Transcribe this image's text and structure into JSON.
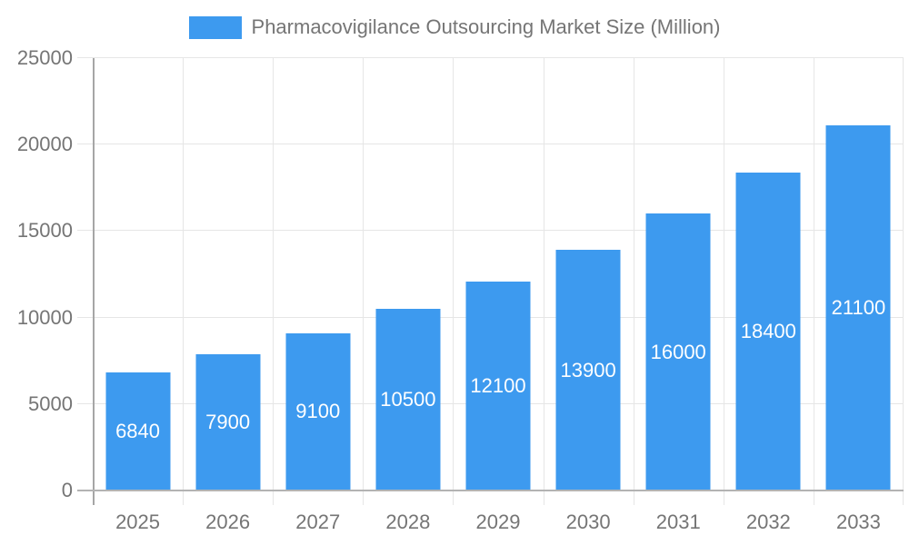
{
  "chart_data": {
    "type": "bar",
    "title": "Pharmacovigilance Outsourcing Market Size (Million)",
    "categories": [
      "2025",
      "2026",
      "2027",
      "2028",
      "2029",
      "2030",
      "2031",
      "2032",
      "2033"
    ],
    "values": [
      6840,
      7900,
      9100,
      10500,
      12100,
      13900,
      16000,
      18400,
      21100
    ],
    "bar_labels": [
      "6840",
      "7900",
      "9100",
      "10500",
      "12100",
      "13900",
      "16000",
      "18400",
      "21100"
    ],
    "xlabel": "",
    "ylabel": "",
    "ylim": [
      0,
      25000
    ],
    "yticks": [
      0,
      5000,
      10000,
      15000,
      20000,
      25000
    ],
    "grid": true,
    "legend_position": "top",
    "colors": {
      "bar": "#3d9aef",
      "bar_label_text": "#ffffff",
      "axis_text": "#757575",
      "title_text": "#757575",
      "gridline": "#e6e6e6",
      "y_axis_line": "#a6a6a6",
      "x_axis_line": "#b3b3b3",
      "background": "#ffffff"
    }
  }
}
